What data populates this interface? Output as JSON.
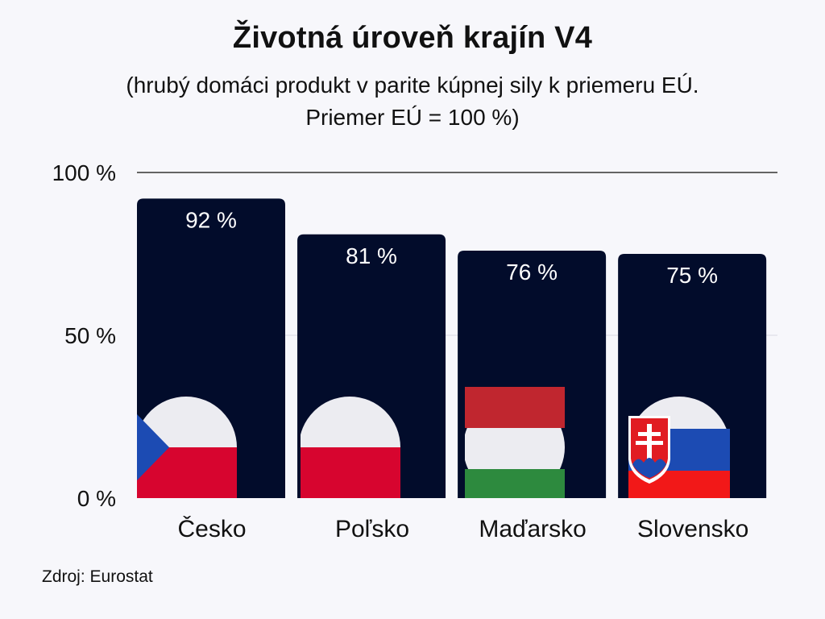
{
  "title": "Životná úroveň krajín V4",
  "subtitle_lines": [
    "(hrubý domáci produkt v parite kúpnej sily k priemeru EÚ.",
    "Priemer EÚ = 100 %)"
  ],
  "source": "Zdroj: Eurostat",
  "colors": {
    "bar": "#020c2b",
    "label_on_bar": "#ffffff",
    "text": "#111111",
    "grid_top": "#333333",
    "grid": "#d9d9e3"
  },
  "chart_data": {
    "type": "bar",
    "title": "Životná úroveň krajín V4",
    "xlabel": "",
    "ylabel": "",
    "ylim": [
      0,
      100
    ],
    "ytick_values": [
      0,
      50,
      100
    ],
    "ytick_labels": [
      "0 %",
      "50 %",
      "100 %"
    ],
    "grid": true,
    "categories": [
      "Česko",
      "Poľsko",
      "Maďarsko",
      "Slovensko"
    ],
    "values": [
      92,
      81,
      76,
      75
    ],
    "data_labels": [
      "92 %",
      "81 %",
      "76 %",
      "75 %"
    ],
    "flag_icons": [
      "czech-flag-icon",
      "polish-flag-icon",
      "hungarian-flag-icon",
      "slovak-flag-icon"
    ]
  }
}
